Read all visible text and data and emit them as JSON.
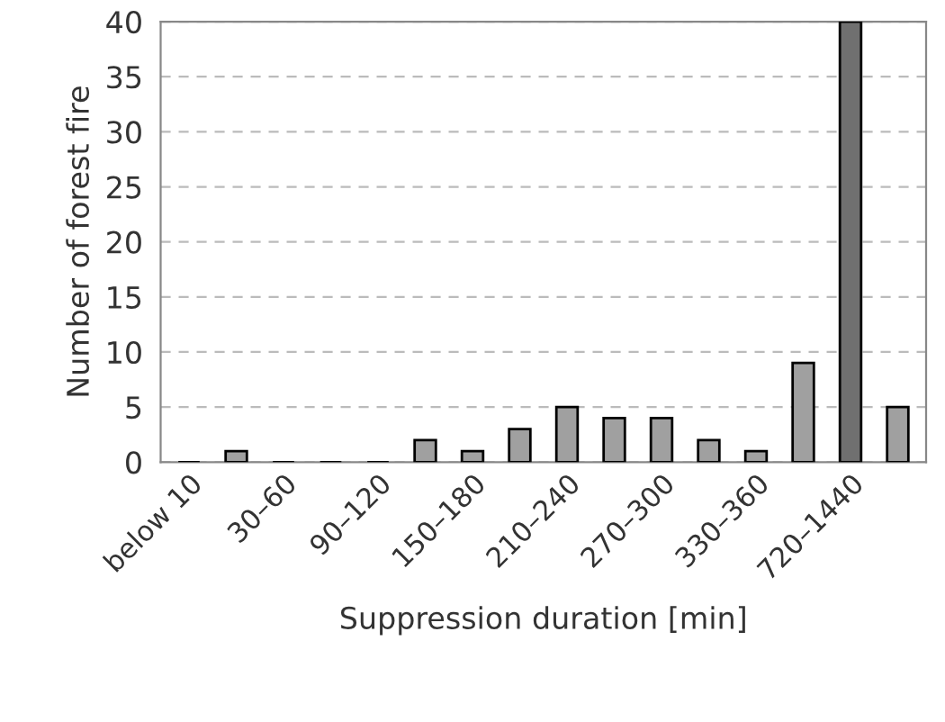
{
  "chart_data": {
    "type": "bar",
    "xlabel": "Suppression duration [min]",
    "ylabel": "Number of forest fire",
    "categories": [
      "below 10",
      null,
      "30–60",
      null,
      "90–120",
      null,
      "150–180",
      null,
      "210–240",
      null,
      "270–300",
      null,
      "330–360",
      null,
      "720–1440",
      null
    ],
    "values": [
      0,
      1,
      0,
      0,
      0,
      2,
      1,
      3,
      5,
      4,
      4,
      2,
      1,
      9,
      40,
      5
    ],
    "colors": [
      "#000000",
      "#a0a0a0",
      "#000000",
      "#000000",
      "#000000",
      "#a0a0a0",
      "#a0a0a0",
      "#a0a0a0",
      "#a0a0a0",
      "#a0a0a0",
      "#a0a0a0",
      "#a0a0a0",
      "#a0a0a0",
      "#a0a0a0",
      "#707070",
      "#a0a0a0"
    ],
    "ylim": [
      0,
      40
    ],
    "yticks": [
      0,
      5,
      10,
      15,
      20,
      25,
      30,
      35,
      40
    ],
    "grid": "y"
  }
}
